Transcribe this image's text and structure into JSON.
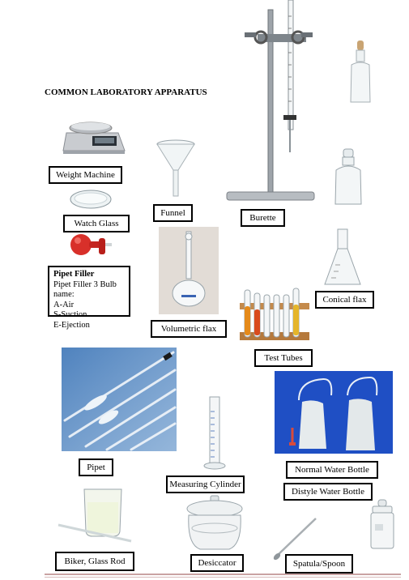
{
  "title": "COMMON LABORATORY APPARATUS",
  "labels": {
    "weight_machine": "Weight Machine",
    "watch_glass": "Watch Glass",
    "funnel": "Funnel",
    "burette": "Burette",
    "conical_flax": "Conical flax",
    "volumetric_flax": "Volumetric flax",
    "test_tubes": "Test Tubes",
    "pipet": "Pipet",
    "measuring_cylinder": "Measuring Cylinder",
    "normal_water_bottle": "Normal Water Bottle",
    "distyle_water_bottle": "Distyle Water Bottle",
    "biker_glass_rod": "Biker, Glass Rod",
    "desiccator": "Desiccator",
    "spatula_spoon": "Spatula/Spoon"
  },
  "pipet_filler": {
    "heading": "Pipet Filler",
    "line1": "Pipet Filler 3 Bulb",
    "line2": "name:",
    "line3": "A-Air",
    "line4": "S-Suction",
    "line5": "E-Ejection"
  },
  "icons": [
    "weight-machine-image",
    "watch-glass-image",
    "funnel-image",
    "burette-stand-image",
    "dropper-bottle-image",
    "reagent-bottle-image",
    "pipet-filler-bulb-image",
    "volumetric-flask-image",
    "conical-flask-image",
    "test-tube-rack-image",
    "pipets-image",
    "measuring-cylinder-image",
    "wash-bottles-image",
    "beaker-glass-rod-image",
    "desiccator-image",
    "spatula-image",
    "stoppered-jar-image"
  ],
  "colors": {
    "label_border": "#000000",
    "wash_bottle_bg": "#1f4fc4",
    "pipet_bg": "#5b8fc7",
    "pipet_filler_red": "#d8302a",
    "test_tube_orange": "#e58a1a"
  }
}
